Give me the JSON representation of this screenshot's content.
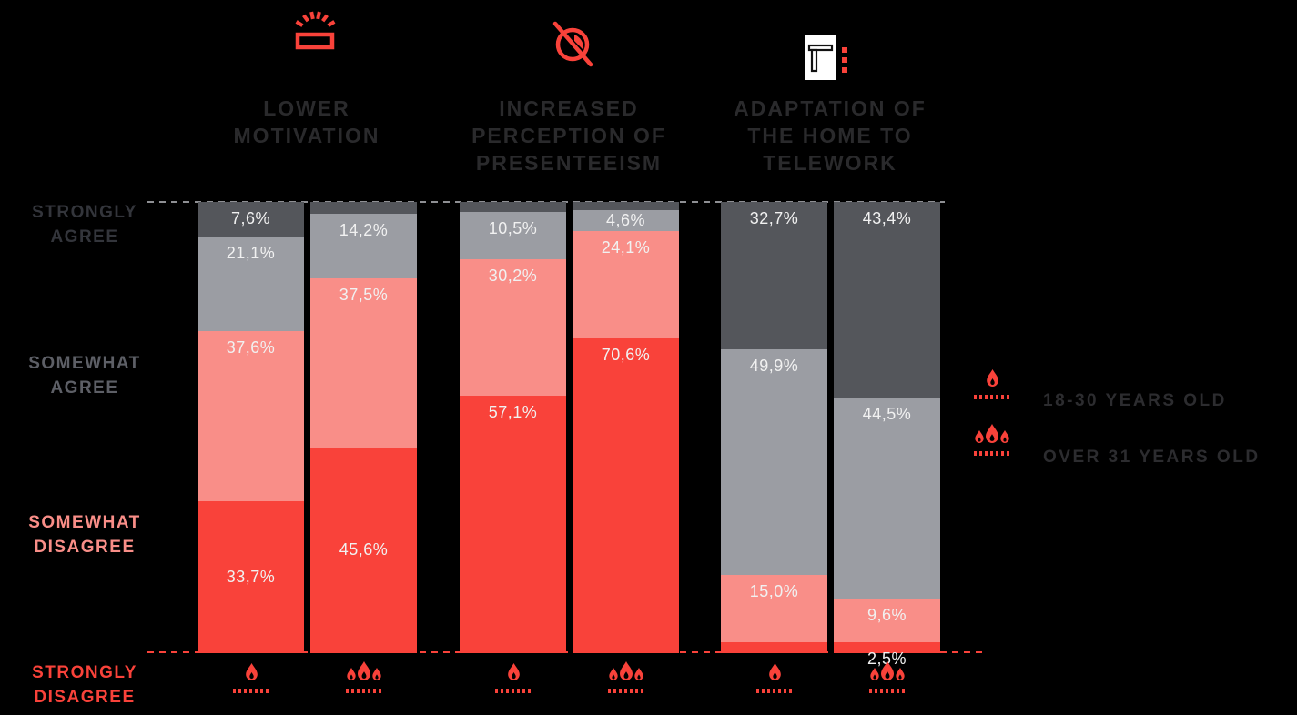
{
  "colors": {
    "strongly_agree": "#54565B",
    "somewhat_agree": "#9B9DA3",
    "somewhat_disagree": "#F98E88",
    "strongly_disagree": "#F9423A",
    "accent_red": "#F9423A",
    "background": "#000000",
    "segment_label_text": "#F1F1F1",
    "header_text": "#2A2A2C",
    "legend_text": "#2C2C2F",
    "row_label_strongly_agree": "#33353B",
    "row_label_somewhat_agree": "#5D5F66",
    "row_label_somewhat_disagree": "#F98E88",
    "row_label_strongly_disagree": "#F9423A"
  },
  "headers": [
    {
      "title": "LOWER\nMOTIVATION",
      "icon": "low-battery-icon"
    },
    {
      "title": "INCREASED\nPERCEPTION OF\nPRESENTEEISM",
      "icon": "eye-slash-icon"
    },
    {
      "title": "ADAPTATION OF\nTHE HOME TO\nTELEWORK",
      "icon": "home-desk-icon"
    }
  ],
  "row_labels": [
    {
      "text": "STRONGLY\nAGREE"
    },
    {
      "text": "SOMEWHAT\nAGREE"
    },
    {
      "text": "SOMEWHAT\nDISAGREE"
    },
    {
      "text": "STRONGLY\nDISAGREE"
    }
  ],
  "legend": {
    "items": [
      {
        "label": "18-30 YEARS OLD",
        "icon": "person-icon"
      },
      {
        "label": "OVER 31 YEARS OLD",
        "icon": "people-icon"
      }
    ]
  },
  "chart_data": {
    "type": "bar",
    "stacked": true,
    "unit": "%",
    "ylim": [
      0,
      100
    ],
    "grid": false,
    "legend_position": "right",
    "stack_categories": [
      "strongly_agree",
      "somewhat_agree",
      "somewhat_disagree",
      "strongly_disagree"
    ],
    "row_axis_labels": [
      "STRONGLY AGREE",
      "SOMEWHAT AGREE",
      "SOMEWHAT DISAGREE",
      "STRONGLY DISAGREE"
    ],
    "groups": [
      {
        "title": "LOWER MOTIVATION",
        "bars": [
          {
            "age_group": "18-30 years old",
            "segments": [
              {
                "category": "strongly_agree",
                "value": 7.6,
                "display": "7,6%",
                "label_align": "top"
              },
              {
                "category": "somewhat_agree",
                "value": 21.1,
                "display": "21,1%",
                "label_align": "top"
              },
              {
                "category": "somewhat_disagree",
                "value": 37.6,
                "display": "37,6%",
                "label_align": "top"
              },
              {
                "category": "strongly_disagree",
                "value": 33.7,
                "display": "33,7%",
                "label_align": "center"
              }
            ]
          },
          {
            "age_group": "over 31 years old",
            "segments": [
              {
                "category": "strongly_agree",
                "value": 2.7,
                "display": "",
                "label_align": "top"
              },
              {
                "category": "somewhat_agree",
                "value": 14.2,
                "display": "14,2%",
                "label_align": "top"
              },
              {
                "category": "somewhat_disagree",
                "value": 37.5,
                "display": "37,5%",
                "label_align": "top"
              },
              {
                "category": "strongly_disagree",
                "value": 45.6,
                "display": "45,6%",
                "label_align": "center"
              }
            ]
          }
        ]
      },
      {
        "title": "INCREASED PERCEPTION OF PRESENTEEISM",
        "bars": [
          {
            "age_group": "18-30 years old",
            "segments": [
              {
                "category": "strongly_agree",
                "value": 2.2,
                "display": "",
                "label_align": "top"
              },
              {
                "category": "somewhat_agree",
                "value": 10.5,
                "display": "10,5%",
                "label_align": "top"
              },
              {
                "category": "somewhat_disagree",
                "value": 30.2,
                "display": "30,2%",
                "label_align": "top"
              },
              {
                "category": "strongly_disagree",
                "value": 57.1,
                "display": "57,1%",
                "label_align": "top"
              }
            ]
          },
          {
            "age_group": "over 31 years old",
            "segments": [
              {
                "category": "strongly_agree",
                "value": 0.7,
                "display": "",
                "label_align": "top"
              },
              {
                "category": "somewhat_agree",
                "value": 4.6,
                "display": "4,6%",
                "label_align": "center"
              },
              {
                "category": "somewhat_disagree",
                "value": 24.1,
                "display": "24,1%",
                "label_align": "top"
              },
              {
                "category": "strongly_disagree",
                "value": 70.6,
                "display": "70,6%",
                "label_align": "top"
              }
            ]
          }
        ]
      },
      {
        "title": "ADAPTATION OF THE HOME TO TELEWORK",
        "bars": [
          {
            "age_group": "18-30 years old",
            "segments": [
              {
                "category": "strongly_agree",
                "value": 32.7,
                "display": "32,7%",
                "label_align": "top"
              },
              {
                "category": "somewhat_agree",
                "value": 49.9,
                "display": "49,9%",
                "label_align": "top"
              },
              {
                "category": "somewhat_disagree",
                "value": 15.0,
                "display": "15,0%",
                "label_align": "top"
              },
              {
                "category": "strongly_disagree",
                "value": 2.4,
                "display": "",
                "label_align": "top"
              }
            ]
          },
          {
            "age_group": "over 31 years old",
            "segments": [
              {
                "category": "strongly_agree",
                "value": 43.4,
                "display": "43,4%",
                "label_align": "top"
              },
              {
                "category": "somewhat_agree",
                "value": 44.5,
                "display": "44,5%",
                "label_align": "top"
              },
              {
                "category": "somewhat_disagree",
                "value": 9.6,
                "display": "9,6%",
                "label_align": "top"
              },
              {
                "category": "strongly_disagree",
                "value": 2.5,
                "display": "2,5%",
                "label_align": "top"
              }
            ]
          }
        ]
      }
    ]
  }
}
